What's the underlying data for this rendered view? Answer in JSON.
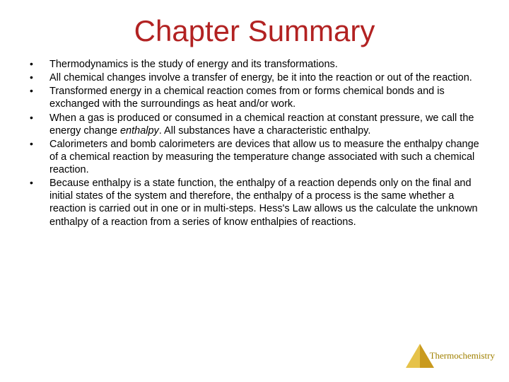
{
  "title": "Chapter Summary",
  "title_color": "#b22222",
  "body_color": "#000000",
  "background_color": "#ffffff",
  "title_fontsize": 42,
  "body_fontsize": 14.5,
  "bullets": [
    "Thermodynamics is the study of energy and its transformations.",
    "All chemical changes involve a transfer of energy, be it into the reaction or out of the reaction.",
    "Transformed energy in a chemical reaction comes from or forms chemical bonds and is exchanged with the surroundings as heat and/or work.",
    "When a gas is produced or consumed in a chemical reaction at constant pressure, we call the energy change enthalpy.  All substances have a characteristic enthalpy.",
    "Calorimeters and bomb calorimeters are devices that allow us to measure the enthalpy change of a chemical reaction by measuring the temperature change associated with such a chemical reaction.",
    "Because enthalpy is a state function, the enthalpy of a reaction depends only on the final and initial states of the system and therefore, the enthalpy of a process is the same whether a reaction is carried out in one or in multi-steps.  Hess's Law allows us the calculate the unknown enthalpy of a reaction from a series of know enthalpies of reactions."
  ],
  "bullet3_prefix": "When a gas is produced or consumed in a chemical reaction at constant pressure, we call the energy change ",
  "bullet3_italic": "enthalpy",
  "bullet3_suffix": ".  All substances have a characteristic enthalpy.",
  "bullet_marker": "•",
  "footer": {
    "label": "Thermochemistry",
    "label_color": "#a08000",
    "pyramid_left_color": "#e6c24a",
    "pyramid_right_color": "#c99a1e"
  }
}
